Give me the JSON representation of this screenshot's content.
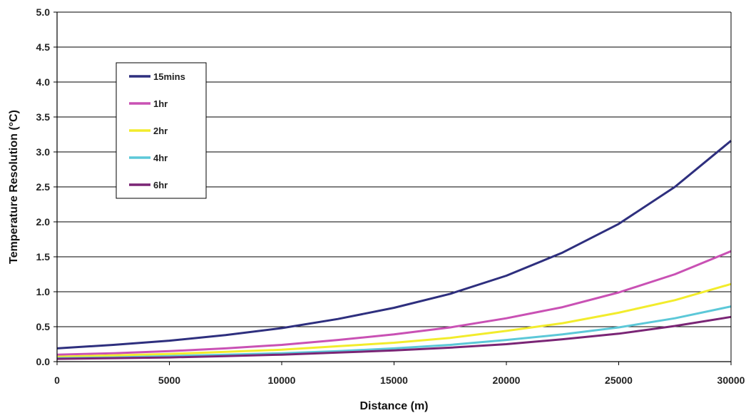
{
  "chart_data": {
    "type": "line",
    "title": "",
    "xlabel": "Distance (m)",
    "ylabel": "Temperature Resolution (°C)",
    "xlim": [
      0,
      30000
    ],
    "ylim": [
      0,
      5.0
    ],
    "xticks": [
      "0",
      "5000",
      "10000",
      "15000",
      "20000",
      "25000",
      "30000"
    ],
    "yticks": [
      "0.0",
      "0.5",
      "1.0",
      "1.5",
      "2.0",
      "2.5",
      "3.0",
      "3.5",
      "4.0",
      "4.5",
      "5.0"
    ],
    "grid": "horizontal",
    "legend_position": "top-left",
    "x": [
      0,
      2500,
      5000,
      7500,
      10000,
      12500,
      15000,
      17500,
      20000,
      22500,
      25000,
      27500,
      30000
    ],
    "series": [
      {
        "name": "15mins",
        "color": "#2e2f7e",
        "values": [
          0.19,
          0.24,
          0.3,
          0.38,
          0.48,
          0.61,
          0.77,
          0.97,
          1.23,
          1.56,
          1.97,
          2.5,
          3.16
        ]
      },
      {
        "name": "1hr",
        "color": "#c951b4",
        "values": [
          0.1,
          0.12,
          0.15,
          0.19,
          0.24,
          0.31,
          0.39,
          0.49,
          0.62,
          0.78,
          0.99,
          1.25,
          1.58
        ]
      },
      {
        "name": "2hr",
        "color": "#f2ec2c",
        "values": [
          0.07,
          0.09,
          0.11,
          0.14,
          0.17,
          0.22,
          0.27,
          0.34,
          0.44,
          0.55,
          0.7,
          0.88,
          1.11
        ]
      },
      {
        "name": "4hr",
        "color": "#5cc8d8",
        "values": [
          0.05,
          0.06,
          0.08,
          0.1,
          0.12,
          0.15,
          0.19,
          0.24,
          0.31,
          0.39,
          0.49,
          0.62,
          0.79
        ]
      },
      {
        "name": "6hr",
        "color": "#7a2575",
        "values": [
          0.04,
          0.05,
          0.06,
          0.08,
          0.1,
          0.13,
          0.16,
          0.2,
          0.25,
          0.32,
          0.4,
          0.51,
          0.64
        ]
      }
    ]
  }
}
